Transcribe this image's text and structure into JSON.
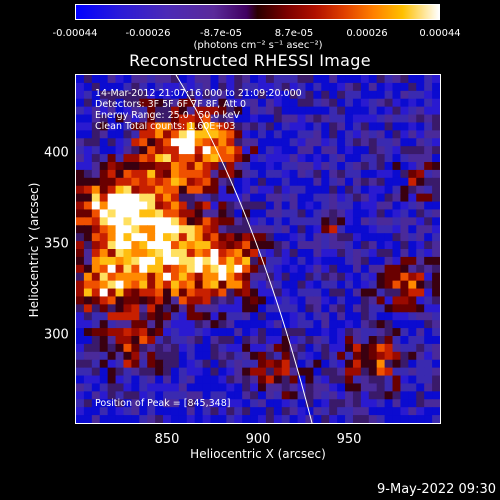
{
  "colorbar": {
    "ticks": [
      "-0.00044",
      "-0.00026",
      "-8.7e-05",
      "8.7e-05",
      "0.00026",
      "0.00044"
    ],
    "units": "(photons cm⁻² s⁻¹ asec⁻²)"
  },
  "title": "Reconstructed RHESSI Image",
  "info": {
    "time": "14-Mar-2012 21:07:16.000 to 21:09:20.000",
    "detectors": "Detectors: 3F 5F 6F 7F 8F, Att 0",
    "energy": "Energy Range: 25.0 - 50.0 keV",
    "clean": "Clean     Total counts: 1.60E+03"
  },
  "peak": "Position of Peak = [845,348]",
  "axes": {
    "xlabel": "Heliocentric X (arcsec)",
    "ylabel": "Heliocentric Y (arcsec)",
    "xticks": [
      "850",
      "900",
      "950"
    ],
    "yticks": [
      "400",
      "350",
      "300"
    ]
  },
  "footer_date": "9-May-2022 09:30",
  "colors": {
    "background": "#000000",
    "limb": "#ffffff"
  }
}
